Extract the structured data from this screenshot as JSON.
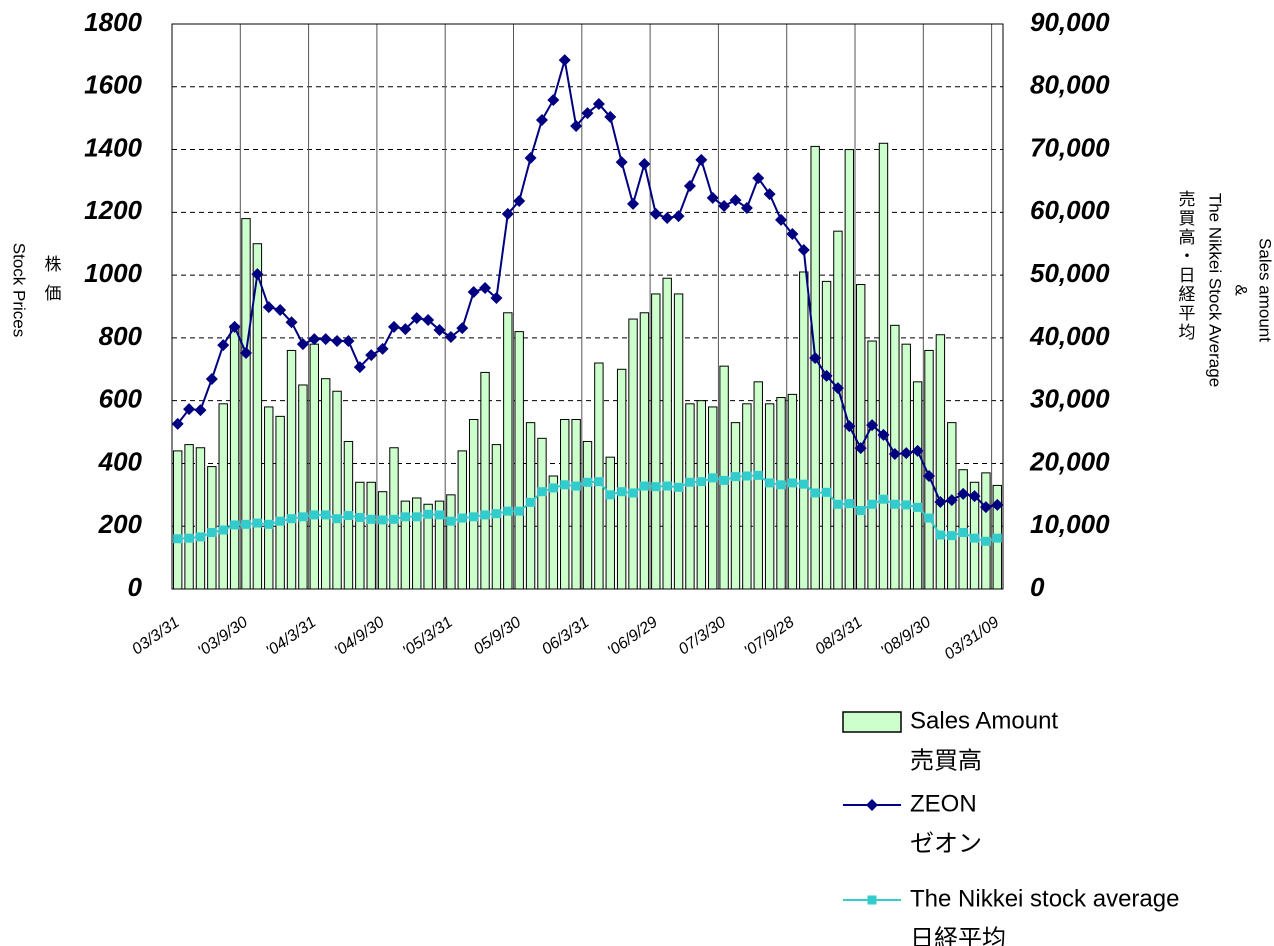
{
  "chart_data": {
    "type": "bar-line",
    "ylabel": "Stock Prices",
    "ylabel_ja": "株価",
    "y2label": "Sales amount",
    "y2label_amp": "&",
    "y2label_2": "The Nikkei Stock Average",
    "y2label_ja": "売買高・日経平均",
    "categories": [
      "03/3/31",
      null,
      null,
      null,
      null,
      null,
      "'03/9/30",
      null,
      null,
      null,
      null,
      null,
      "'04/3/31",
      null,
      null,
      null,
      null,
      null,
      "'04/9/30",
      null,
      null,
      null,
      null,
      null,
      "'05/3/31",
      null,
      null,
      null,
      null,
      null,
      "05/9/30",
      null,
      null,
      null,
      null,
      null,
      "06/3/31",
      null,
      null,
      null,
      null,
      null,
      "'06/9/29",
      null,
      null,
      null,
      null,
      null,
      "07/3/30",
      null,
      null,
      null,
      null,
      null,
      "'07/9/28",
      null,
      null,
      null,
      null,
      null,
      "08/3/31",
      null,
      null,
      null,
      null,
      null,
      "'08/9/30",
      null,
      null,
      null,
      null,
      null,
      "03/31/09"
    ],
    "ylim": [
      0,
      1800
    ],
    "yticks": [
      0,
      200,
      400,
      600,
      800,
      1000,
      1200,
      1400,
      1600,
      1800
    ],
    "y2lim": [
      0,
      90000
    ],
    "y2ticks": [
      0,
      {
        "value": 10000,
        "label": "10,000"
      },
      {
        "value": 20000,
        "label": "20,000"
      },
      {
        "value": 30000,
        "label": "30,000"
      },
      {
        "value": 40000,
        "label": "40,000"
      },
      {
        "value": 50000,
        "label": "50,000"
      },
      {
        "value": 60000,
        "label": "60,000"
      },
      {
        "value": 70000,
        "label": "70,000"
      },
      {
        "value": 80000,
        "label": "80,000"
      },
      {
        "value": 90000,
        "label": "90,000"
      }
    ],
    "grid": true,
    "series": [
      {
        "name": "Sales Amount",
        "name_ja": "売買高",
        "kind": "bar",
        "axis": "y2",
        "color": "#ccffcc",
        "values": [
          22000,
          23000,
          22500,
          19500,
          29500,
          42000,
          59000,
          55000,
          29000,
          27500,
          38000,
          32500,
          39000,
          33500,
          31500,
          23500,
          17000,
          17000,
          15500,
          22500,
          14000,
          14500,
          13500,
          14000,
          15000,
          22000,
          27000,
          34500,
          23000,
          44000,
          41000,
          26500,
          24000,
          18000,
          27000,
          27000,
          23500,
          36000,
          21000,
          35000,
          43000,
          44000,
          47000,
          49500,
          47000,
          29500,
          30000,
          29000,
          35500,
          26500,
          29500,
          33000,
          29500,
          30500,
          31000,
          50500,
          70500,
          49000,
          57000,
          70000,
          48500,
          39500,
          71000,
          42000,
          39000,
          33000,
          38000,
          40500,
          26500,
          19000,
          17000,
          18500,
          16500
        ]
      },
      {
        "name": "ZEON",
        "name_ja": "ゼオン",
        "kind": "line",
        "marker": "diamond",
        "color": "#000080",
        "values": [
          526,
          573,
          570,
          669,
          777,
          835,
          752,
          1003,
          898,
          889,
          850,
          780,
          796,
          796,
          790,
          790,
          707,
          745,
          765,
          835,
          828,
          863,
          857,
          825,
          803,
          831,
          946,
          959,
          927,
          1195,
          1236,
          1373,
          1494,
          1558,
          1685,
          1475,
          1516,
          1545,
          1504,
          1360,
          1227,
          1354,
          1195,
          1182,
          1188,
          1284,
          1367,
          1246,
          1220,
          1239,
          1214,
          1309,
          1258,
          1176,
          1131,
          1080,
          736,
          679,
          640,
          519,
          449,
          522,
          491,
          430,
          433,
          440,
          360,
          277,
          283,
          303,
          296,
          261,
          268
        ]
      },
      {
        "name": "The Nikkei stock average",
        "name_ja": "日経平均",
        "kind": "line",
        "marker": "square",
        "axis": "y2",
        "color": "#33cccc",
        "values": [
          8000,
          8100,
          8300,
          9000,
          9400,
          10200,
          10300,
          10500,
          10300,
          10800,
          11200,
          11500,
          11800,
          11800,
          11200,
          11700,
          11400,
          11100,
          11000,
          11100,
          11500,
          11500,
          11900,
          11800,
          10800,
          11300,
          11500,
          11800,
          12000,
          12400,
          12400,
          13800,
          15500,
          16100,
          16600,
          16400,
          17000,
          17100,
          15000,
          15500,
          15300,
          16400,
          16300,
          16400,
          16200,
          17000,
          17100,
          17700,
          17300,
          17900,
          18000,
          18100,
          16900,
          16600,
          16900,
          16700,
          15300,
          15400,
          13500,
          13600,
          12500,
          13500,
          14300,
          13500,
          13400,
          13000,
          11300,
          8600,
          8500,
          9000,
          8100,
          7600,
          8100
        ]
      }
    ]
  }
}
